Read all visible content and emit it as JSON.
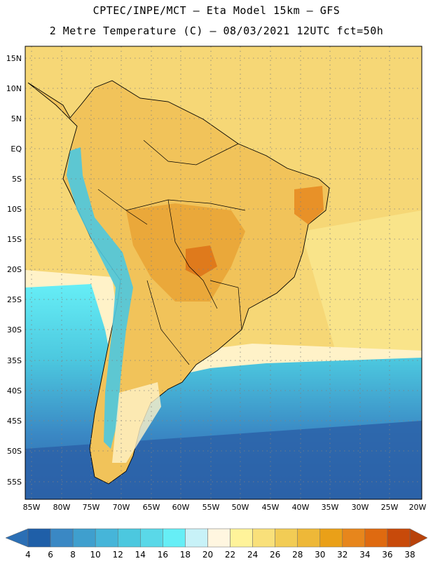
{
  "header": {
    "title_line1": "CPTEC/INPE/MCT –  Eta Model 15km – GFS",
    "title_line2": "2 Metre Temperature (C) – 08/03/2021 12UTC fct=50h"
  },
  "map": {
    "lat_labels": [
      "15N",
      "10N",
      "5N",
      "EQ",
      "5S",
      "10S",
      "15S",
      "20S",
      "25S",
      "30S",
      "35S",
      "40S",
      "45S",
      "50S",
      "55S"
    ],
    "lon_labels": [
      "85W",
      "80W",
      "75W",
      "70W",
      "65W",
      "60W",
      "55W",
      "50W",
      "45W",
      "40W",
      "35W",
      "30W",
      "25W",
      "20W"
    ],
    "grid": "dotted"
  },
  "colorbar": {
    "labels": [
      "4",
      "6",
      "8",
      "10",
      "12",
      "14",
      "16",
      "18",
      "20",
      "22",
      "24",
      "26",
      "28",
      "30",
      "32",
      "34",
      "36",
      "38"
    ],
    "colors": [
      "#2b6fb5",
      "#1f5fa8",
      "#3a88c4",
      "#3f9fce",
      "#46b5d9",
      "#4cc8df",
      "#5ad8e8",
      "#66eef6",
      "#c8f2f8",
      "#fff6e0",
      "#fff39a",
      "#f9e07a",
      "#f2cc55",
      "#eeb838",
      "#eaa018",
      "#e7861c",
      "#df6a10",
      "#c84a0a",
      "#b8420a"
    ]
  }
}
